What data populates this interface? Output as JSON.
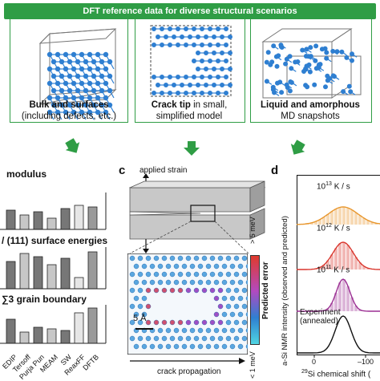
{
  "banner": "DFT reference data for diverse structural scenarios",
  "scenarios": [
    {
      "title": "Bulk and surfaces",
      "subtitle": "(including defects, etc.)"
    },
    {
      "title": "Crack tip",
      "title_rest": " in small,",
      "subtitle": "simplified model"
    },
    {
      "title": "Liquid and amorphous",
      "subtitle": "MD snapshots"
    }
  ],
  "panel_b": {
    "labels": [
      "modulus",
      "/ (111) surface energies",
      "∑3 grain boundary"
    ],
    "label_prefix_b": "γ",
    "methods": [
      "EDIP",
      "Tersoff",
      "Purja Pun",
      "MEAM",
      "SW",
      "ReaxFF",
      "DFTB"
    ]
  },
  "panel_c": {
    "letter": "c",
    "applied_strain": "applied strain",
    "crack_propagation": "crack propagation",
    "scale": "5 Å",
    "colorbar_title": "Predicted error",
    "colorbar_top": "> 5 meV",
    "colorbar_bottom": "< 1 meV"
  },
  "panel_d": {
    "letter": "d",
    "rates": [
      {
        "base": "10",
        "exp": "13",
        "unit": " K / s"
      },
      {
        "base": "10",
        "exp": "12",
        "unit": " K / s"
      },
      {
        "base": "10",
        "exp": "11",
        "unit": " K / s"
      }
    ],
    "experiment": "Experiment",
    "experiment_sub": "(annealed)",
    "ylabel": "a-Si NMR intensity (observed and predicted)",
    "xlabel_sup": "29",
    "xlabel": "Si chemical shift (",
    "xticks": [
      "0",
      "–100"
    ],
    "colors": {
      "orange": "#e8962c",
      "red": "#d9342b",
      "purple": "#9b2f93"
    }
  },
  "colors": {
    "green": "#2f9d45",
    "blue": "#2f7fd1",
    "gray": "#8c8c8c"
  }
}
